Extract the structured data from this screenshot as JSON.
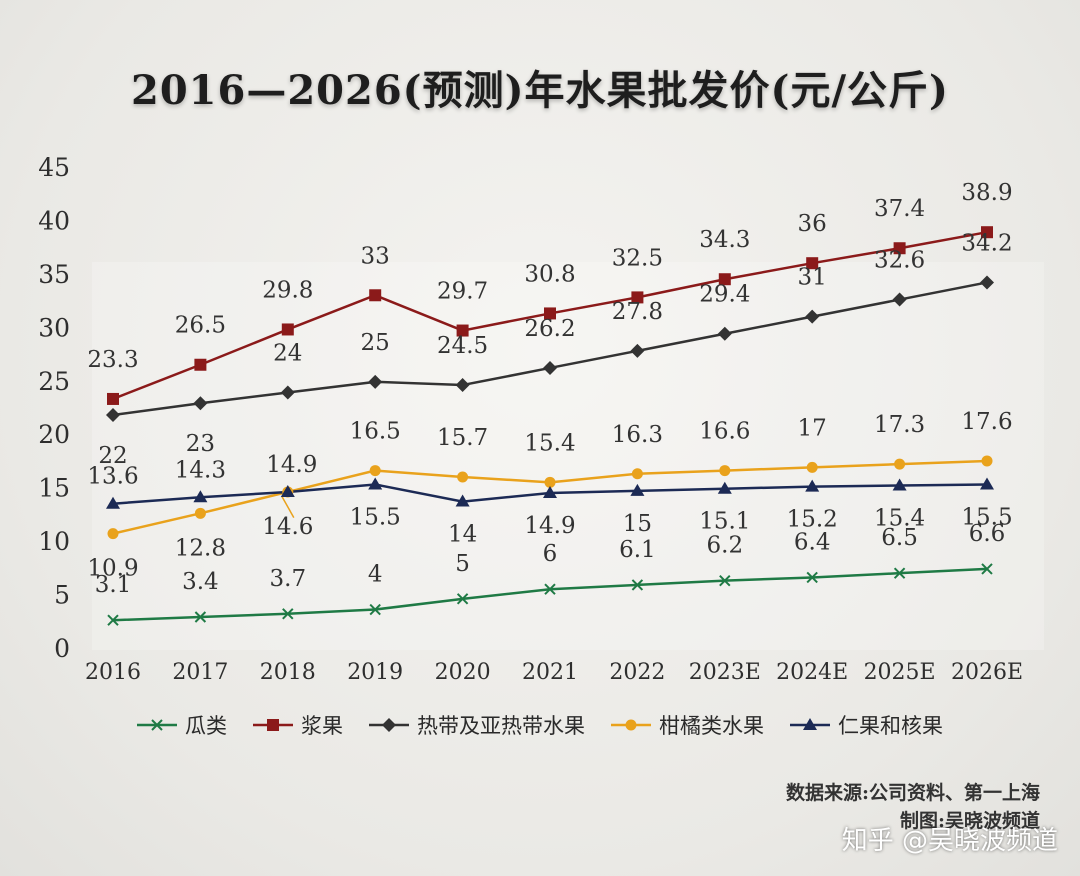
{
  "chart_data": {
    "type": "line",
    "title": "2016—2026(预测)年水果批发价(元/公斤)",
    "categories": [
      "2016",
      "2017",
      "2018",
      "2019",
      "2020",
      "2021",
      "2022",
      "2023E",
      "2024E",
      "2025E",
      "2026E"
    ],
    "ylim": [
      0,
      45
    ],
    "yticks": [
      "0",
      "5",
      "10",
      "15",
      "20",
      "25",
      "30",
      "35",
      "40",
      "45"
    ],
    "grid": false,
    "legend_position": "bottom",
    "series": [
      {
        "name": "瓜类",
        "color": "#1f7a45",
        "marker": "x",
        "values": [
          3.1,
          3.4,
          3.7,
          4,
          5,
          6,
          6.1,
          6.2,
          6.4,
          6.5,
          6.6
        ],
        "plot_values": [
          2.6,
          2.9,
          3.2,
          3.6,
          4.6,
          5.5,
          5.9,
          6.3,
          6.6,
          7.0,
          7.4
        ]
      },
      {
        "name": "浆果",
        "color": "#8b1a1a",
        "marker": "square",
        "values": [
          23.3,
          26.5,
          29.8,
          33,
          29.7,
          30.8,
          32.5,
          34.3,
          36,
          37.4,
          38.9
        ],
        "plot_values": [
          23.3,
          26.5,
          29.8,
          33,
          29.7,
          31.3,
          32.8,
          34.5,
          36,
          37.4,
          38.9
        ]
      },
      {
        "name": "热带及亚热带水果",
        "color": "#333333",
        "marker": "diamond",
        "values": [
          22,
          23,
          24,
          25,
          24.5,
          26.2,
          27.8,
          29.4,
          31,
          32.6,
          34.2
        ],
        "plot_values": [
          21.8,
          22.9,
          23.9,
          24.9,
          24.6,
          26.2,
          27.8,
          29.4,
          31,
          32.6,
          34.2
        ]
      },
      {
        "name": "柑橘类水果",
        "color": "#e9a21c",
        "marker": "circle",
        "values": [
          10.9,
          12.8,
          14.6,
          16.5,
          15.7,
          15.4,
          16.3,
          16.6,
          17,
          17.3,
          17.6
        ],
        "plot_values": [
          10.7,
          12.6,
          14.6,
          16.6,
          16.0,
          15.5,
          16.3,
          16.6,
          16.9,
          17.2,
          17.5
        ]
      },
      {
        "name": "仁果和核果",
        "color": "#1c2a55",
        "marker": "triangle",
        "values": [
          13.6,
          14.3,
          14.9,
          15.5,
          14,
          14.9,
          15,
          15.1,
          15.2,
          15.4,
          15.5
        ],
        "plot_values": [
          13.5,
          14.1,
          14.6,
          15.3,
          13.7,
          14.5,
          14.7,
          14.9,
          15.1,
          15.2,
          15.3
        ]
      }
    ]
  },
  "source": "数据来源:公司资料、第一上海",
  "credit": "制图:吴晓波频道",
  "watermark": "知乎 @吴晓波频道"
}
